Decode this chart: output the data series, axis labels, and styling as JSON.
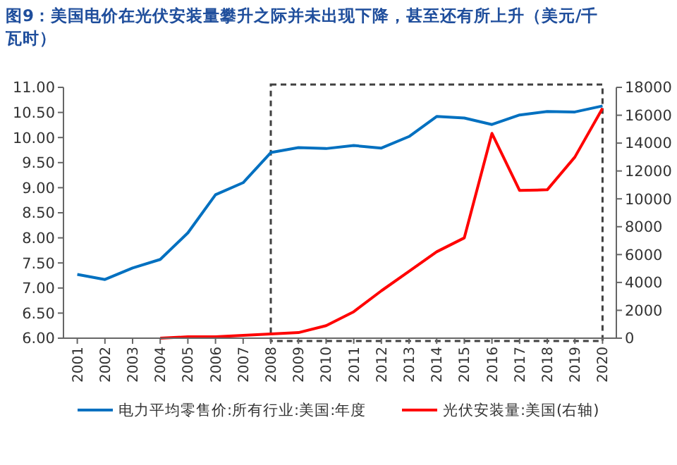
{
  "chart_data": {
    "type": "line",
    "title": "图9：美国电价在光伏安装量攀升之际并未出现下降，甚至还有所上升（美元/千瓦时）",
    "categories": [
      "2001",
      "2002",
      "2003",
      "2004",
      "2005",
      "2006",
      "2007",
      "2008",
      "2009",
      "2010",
      "2011",
      "2012",
      "2013",
      "2014",
      "2015",
      "2016",
      "2017",
      "2018",
      "2019",
      "2020"
    ],
    "series": [
      {
        "name": "电力平均零售价:所有行业:美国:年度",
        "color": "#0070c0",
        "values": [
          7.27,
          7.17,
          7.4,
          7.57,
          8.1,
          8.86,
          9.1,
          9.7,
          9.8,
          9.78,
          9.84,
          9.79,
          10.02,
          10.42,
          10.39,
          10.26,
          10.45,
          10.52,
          10.51,
          10.63
        ]
      },
      {
        "name": "光伏安装量:美国(右轴)",
        "color": "#ff0000",
        "axis": "y2",
        "values": [
          null,
          null,
          null,
          0,
          100,
          100,
          200,
          300,
          400,
          900,
          1900,
          3400,
          4800,
          6200,
          7200,
          14700,
          10600,
          10650,
          13000,
          16500
        ]
      }
    ],
    "ylim": [
      6,
      11
    ],
    "yticks": [
      {
        "value": 6,
        "label": "6.00"
      },
      {
        "value": 6.5,
        "label": "6.50"
      },
      {
        "value": 7,
        "label": "7.00"
      },
      {
        "value": 7.5,
        "label": "7.50"
      },
      {
        "value": 8,
        "label": "8.00"
      },
      {
        "value": 8.5,
        "label": "8.50"
      },
      {
        "value": 9,
        "label": "9.00"
      },
      {
        "value": 9.5,
        "label": "9.50"
      },
      {
        "value": 10,
        "label": "10.00"
      },
      {
        "value": 10.5,
        "label": "10.50"
      },
      {
        "value": 11,
        "label": "11.00"
      }
    ],
    "y2lim": [
      0,
      18000
    ],
    "y2ticks": [
      0,
      2000,
      4000,
      6000,
      8000,
      10000,
      12000,
      14000,
      16000,
      18000
    ],
    "grid": false,
    "legend": "bottom",
    "line_style": "solid"
  }
}
